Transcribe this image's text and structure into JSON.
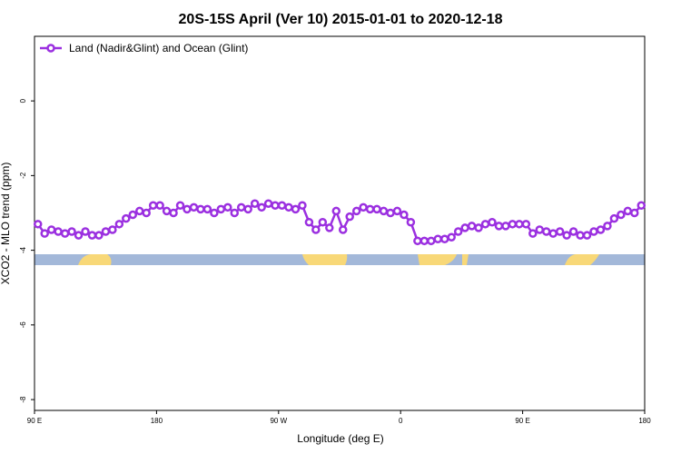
{
  "chart_data": {
    "type": "line",
    "title": "20S-15S April (Ver 10)   2015-01-01 to 2020-12-18",
    "x_label": "Longitude (deg E)",
    "y_label": "XCO2 - MLO trend (ppm)",
    "legend": "top-left",
    "xlim": [
      90,
      540
    ],
    "ylim": [
      -8.29,
      1.73
    ],
    "xticks": [
      {
        "value": 90,
        "label": "90 E"
      },
      {
        "value": 180,
        "label": "180"
      },
      {
        "value": 270,
        "label": "90 W"
      },
      {
        "value": 360,
        "label": "0"
      },
      {
        "value": 450,
        "label": "90 E"
      },
      {
        "value": 540,
        "label": "180"
      }
    ],
    "yticks": [
      -8,
      -6,
      -4,
      -2,
      0
    ],
    "x": [
      92.5,
      97.5,
      102.5,
      107.5,
      112.5,
      117.5,
      122.5,
      127.5,
      132.5,
      137.5,
      142.5,
      147.5,
      152.5,
      157.5,
      162.5,
      167.5,
      172.5,
      177.5,
      182.5,
      187.5,
      192.5,
      197.5,
      202.5,
      207.5,
      212.5,
      217.5,
      222.5,
      227.5,
      232.5,
      237.5,
      242.5,
      247.5,
      252.5,
      257.5,
      262.5,
      267.5,
      272.5,
      277.5,
      282.5,
      287.5,
      292.5,
      297.5,
      302.5,
      307.5,
      312.5,
      317.5,
      322.5,
      327.5,
      332.5,
      337.5,
      342.5,
      347.5,
      352.5,
      357.5,
      362.5,
      367.5,
      372.5,
      377.5,
      382.5,
      387.5,
      392.5,
      397.5,
      402.5,
      407.5,
      412.5,
      417.5,
      422.5,
      427.5,
      432.5,
      437.5,
      442.5,
      447.5,
      452.5,
      457.5,
      462.5,
      467.5,
      472.5,
      477.5,
      482.5,
      487.5,
      492.5,
      497.5,
      502.5,
      507.5,
      512.5,
      517.5,
      522.5,
      527.5,
      532.5,
      537.5
    ],
    "series": [
      {
        "name": "Land (Nadir&Glint) and Ocean (Glint)",
        "color": "#9b30e0",
        "values": [
          -3.3,
          -3.55,
          -3.45,
          -3.5,
          -3.55,
          -3.5,
          -3.6,
          -3.5,
          -3.6,
          -3.6,
          -3.5,
          -3.45,
          -3.3,
          -3.15,
          -3.05,
          -2.95,
          -3.0,
          -2.8,
          -2.8,
          -2.95,
          -3.0,
          -2.8,
          -2.9,
          -2.85,
          -2.9,
          -2.9,
          -3.0,
          -2.9,
          -2.85,
          -3.0,
          -2.85,
          -2.9,
          -2.75,
          -2.85,
          -2.75,
          -2.8,
          -2.8,
          -2.85,
          -2.9,
          -2.8,
          -3.25,
          -3.45,
          -3.25,
          -3.4,
          -2.95,
          -3.45,
          -3.1,
          -2.95,
          -2.85,
          -2.9,
          -2.9,
          -2.95,
          -3.0,
          -2.95,
          -3.05,
          -3.25,
          -3.75,
          -3.75,
          -3.75,
          -3.7,
          -3.7,
          -3.65,
          -3.5,
          -3.4,
          -3.35,
          -3.4,
          -3.3,
          -3.25,
          -3.35,
          -3.35,
          -3.3,
          -3.3,
          -3.3,
          -3.55,
          -3.45,
          -3.5,
          -3.55,
          -3.5,
          -3.6,
          -3.5,
          -3.6,
          -3.6,
          -3.5,
          -3.45,
          -3.35,
          -3.15,
          -3.05,
          -2.95,
          -3.0,
          -2.8
        ]
      }
    ]
  }
}
